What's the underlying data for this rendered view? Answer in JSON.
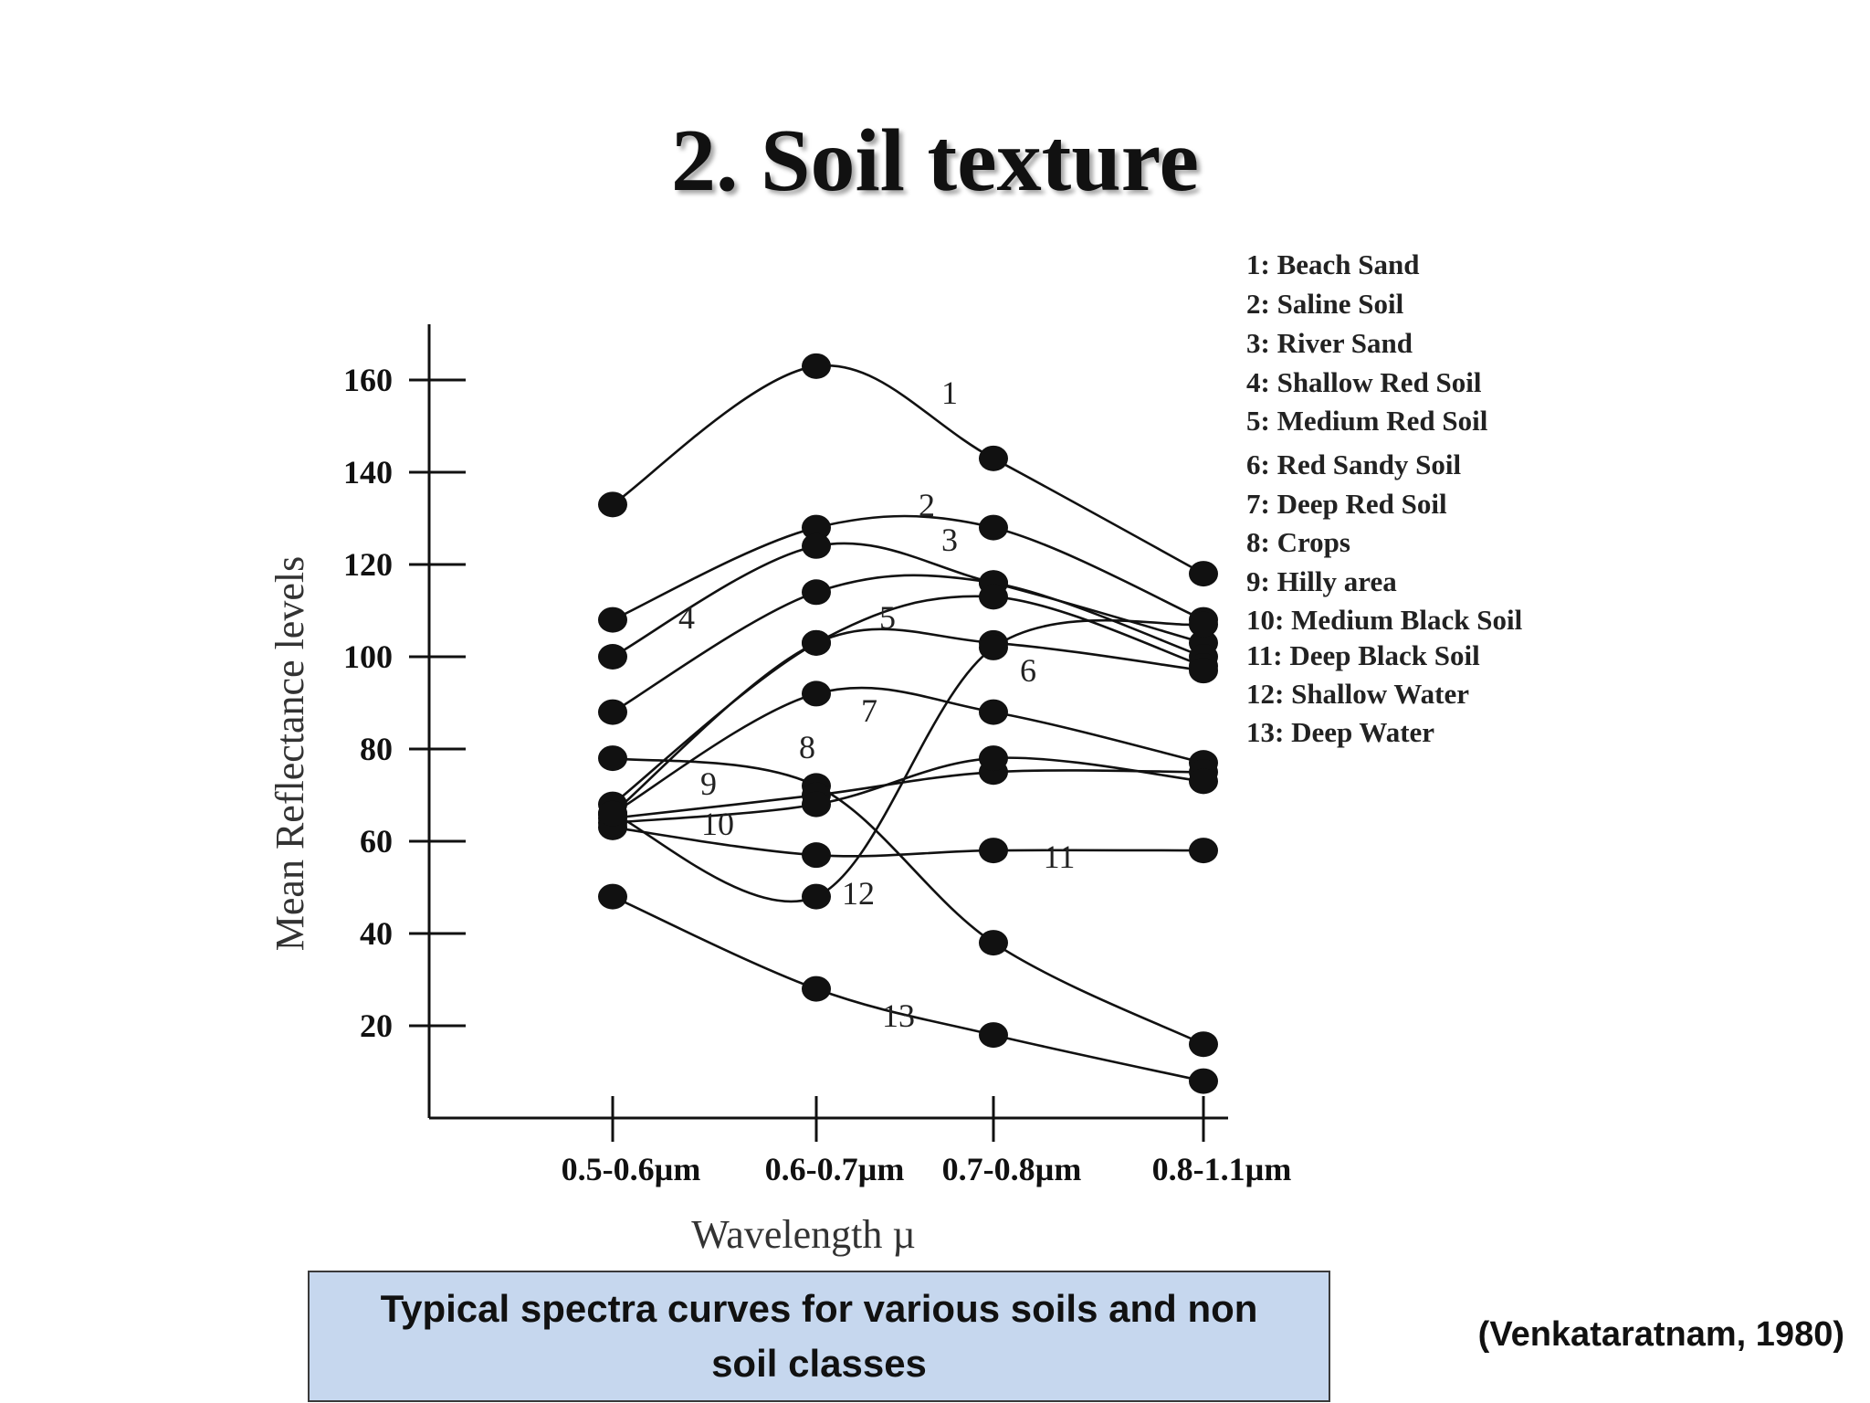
{
  "slide": {
    "title": "2. Soil texture",
    "caption": "Typical spectra curves for various soils and non soil classes",
    "citation": "(Venkataratnam, 1980)"
  },
  "chart_data": {
    "type": "line",
    "title": "",
    "xlabel": "Wavelength µ",
    "ylabel": "Mean Reflectance levels",
    "categories": [
      "0.5-0.6µm",
      "0.6-0.7µm",
      "0.7-0.8µm",
      "0.8-1.1µm"
    ],
    "yticks": [
      20,
      40,
      60,
      80,
      100,
      120,
      140,
      160
    ],
    "ylim": [
      0,
      170
    ],
    "grid": false,
    "legend_position": "top-right",
    "series": [
      {
        "label": "1",
        "name": "1: Beach Sand",
        "values": [
          133,
          163,
          143,
          118
        ]
      },
      {
        "label": "2",
        "name": "2: Saline Soil",
        "values": [
          108,
          128,
          128,
          108
        ]
      },
      {
        "label": "3",
        "name": "3: River Sand",
        "values": [
          100,
          124,
          116,
          103
        ]
      },
      {
        "label": "4",
        "name": "4: Shallow Red Soil",
        "values": [
          88,
          114,
          116,
          100
        ]
      },
      {
        "label": "5",
        "name": "5: Medium Red Soil",
        "values": [
          68,
          103,
          113,
          98
        ]
      },
      {
        "label": "6",
        "name": "6: Red Sandy Soil",
        "values": [
          66,
          103,
          103,
          97
        ]
      },
      {
        "label": "7",
        "name": "7: Deep Red Soil",
        "values": [
          66,
          92,
          88,
          77
        ]
      },
      {
        "label": "8",
        "name": "8: Crops",
        "values": [
          78,
          72,
          38,
          16
        ]
      },
      {
        "label": "9",
        "name": "9: Hilly area",
        "values": [
          65,
          70,
          75,
          75
        ]
      },
      {
        "label": "10",
        "name": "10: Medium Black Soil",
        "values": [
          64,
          68,
          78,
          73
        ]
      },
      {
        "label": "11",
        "name": "11: Deep Black Soil",
        "values": [
          63,
          57,
          58,
          58
        ]
      },
      {
        "label": "12",
        "name": "12: Shallow Water",
        "values": [
          66,
          48,
          102,
          107
        ]
      },
      {
        "label": "13",
        "name": "13: Deep Water",
        "values": [
          48,
          28,
          18,
          8
        ]
      }
    ]
  }
}
